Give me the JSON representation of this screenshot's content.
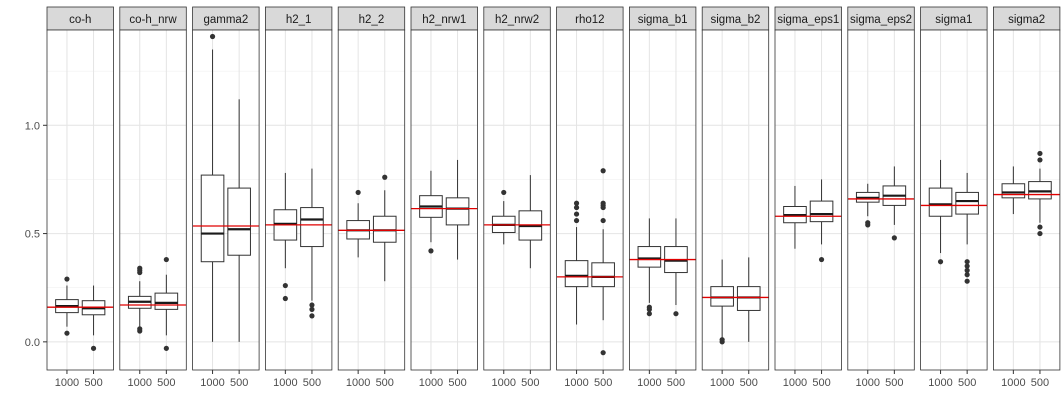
{
  "chart_data": {
    "type": "boxplot",
    "facet_by": "parameter",
    "x_categories": [
      "1000",
      "500"
    ],
    "yticks": [
      0.0,
      0.5,
      1.0
    ],
    "ytick_labels": [
      "0.0",
      "0.5",
      "1.0"
    ],
    "ylim": [
      -0.13,
      1.44
    ],
    "reference_line_color": "#e00000",
    "box_color": "#333333",
    "panels": [
      {
        "label": "co-h",
        "true_value": 0.16,
        "boxes": [
          {
            "x": "1000",
            "q1": 0.135,
            "median": 0.165,
            "q3": 0.195,
            "wlo": 0.07,
            "whi": 0.26,
            "outliers": [
              0.04,
              0.29
            ]
          },
          {
            "x": "500",
            "q1": 0.125,
            "median": 0.155,
            "q3": 0.19,
            "wlo": 0.03,
            "whi": 0.26,
            "outliers": [
              -0.03
            ]
          }
        ]
      },
      {
        "label": "co-h_nrw",
        "true_value": 0.17,
        "boxes": [
          {
            "x": "1000",
            "q1": 0.155,
            "median": 0.185,
            "q3": 0.21,
            "wlo": 0.07,
            "whi": 0.28,
            "outliers": [
              0.05,
              0.06,
              0.32,
              0.33,
              0.34
            ]
          },
          {
            "x": "500",
            "q1": 0.15,
            "median": 0.18,
            "q3": 0.225,
            "wlo": 0.03,
            "whi": 0.31,
            "outliers": [
              -0.03,
              0.38
            ]
          }
        ]
      },
      {
        "label": "gamma2",
        "true_value": 0.535,
        "boxes": [
          {
            "x": "1000",
            "q1": 0.37,
            "median": 0.5,
            "q3": 0.77,
            "wlo": 0.0,
            "whi": 1.35,
            "outliers": [
              1.41
            ]
          },
          {
            "x": "500",
            "q1": 0.4,
            "median": 0.52,
            "q3": 0.71,
            "wlo": 0.0,
            "whi": 1.12,
            "outliers": []
          }
        ]
      },
      {
        "label": "h2_1",
        "true_value": 0.54,
        "boxes": [
          {
            "x": "1000",
            "q1": 0.47,
            "median": 0.545,
            "q3": 0.61,
            "wlo": 0.34,
            "whi": 0.78,
            "outliers": [
              0.2,
              0.26
            ]
          },
          {
            "x": "500",
            "q1": 0.44,
            "median": 0.565,
            "q3": 0.62,
            "wlo": 0.19,
            "whi": 0.8,
            "outliers": [
              0.12,
              0.15,
              0.17
            ]
          }
        ]
      },
      {
        "label": "h2_2",
        "true_value": 0.515,
        "boxes": [
          {
            "x": "1000",
            "q1": 0.475,
            "median": 0.515,
            "q3": 0.56,
            "wlo": 0.39,
            "whi": 0.64,
            "outliers": [
              0.69
            ]
          },
          {
            "x": "500",
            "q1": 0.46,
            "median": 0.515,
            "q3": 0.58,
            "wlo": 0.28,
            "whi": 0.7,
            "outliers": [
              0.76
            ]
          }
        ]
      },
      {
        "label": "h2_nrw1",
        "true_value": 0.615,
        "boxes": [
          {
            "x": "1000",
            "q1": 0.575,
            "median": 0.625,
            "q3": 0.675,
            "wlo": 0.46,
            "whi": 0.79,
            "outliers": [
              0.42
            ]
          },
          {
            "x": "500",
            "q1": 0.54,
            "median": 0.615,
            "q3": 0.665,
            "wlo": 0.38,
            "whi": 0.84,
            "outliers": []
          }
        ]
      },
      {
        "label": "h2_nrw2",
        "true_value": 0.54,
        "boxes": [
          {
            "x": "1000",
            "q1": 0.505,
            "median": 0.54,
            "q3": 0.58,
            "wlo": 0.45,
            "whi": 0.65,
            "outliers": [
              0.69
            ]
          },
          {
            "x": "500",
            "q1": 0.47,
            "median": 0.535,
            "q3": 0.605,
            "wlo": 0.34,
            "whi": 0.77,
            "outliers": []
          }
        ]
      },
      {
        "label": "rho12",
        "true_value": 0.3,
        "boxes": [
          {
            "x": "1000",
            "q1": 0.255,
            "median": 0.305,
            "q3": 0.375,
            "wlo": 0.08,
            "whi": 0.53,
            "outliers": [
              0.56,
              0.59,
              0.62,
              0.64
            ]
          },
          {
            "x": "500",
            "q1": 0.255,
            "median": 0.3,
            "q3": 0.365,
            "wlo": 0.1,
            "whi": 0.52,
            "outliers": [
              -0.05,
              0.56,
              0.62,
              0.63,
              0.64,
              0.79
            ]
          }
        ]
      },
      {
        "label": "sigma_b1",
        "true_value": 0.38,
        "boxes": [
          {
            "x": "1000",
            "q1": 0.345,
            "median": 0.385,
            "q3": 0.44,
            "wlo": 0.18,
            "whi": 0.57,
            "outliers": [
              0.13,
              0.15,
              0.16
            ]
          },
          {
            "x": "500",
            "q1": 0.32,
            "median": 0.375,
            "q3": 0.44,
            "wlo": 0.17,
            "whi": 0.57,
            "outliers": [
              0.13
            ]
          }
        ]
      },
      {
        "label": "sigma_b2",
        "true_value": 0.205,
        "boxes": [
          {
            "x": "1000",
            "q1": 0.165,
            "median": 0.205,
            "q3": 0.255,
            "wlo": 0.02,
            "whi": 0.38,
            "outliers": [
              0.0,
              0.01
            ]
          },
          {
            "x": "500",
            "q1": 0.145,
            "median": 0.205,
            "q3": 0.255,
            "wlo": 0.0,
            "whi": 0.39,
            "outliers": []
          }
        ]
      },
      {
        "label": "sigma_eps1",
        "true_value": 0.58,
        "boxes": [
          {
            "x": "1000",
            "q1": 0.55,
            "median": 0.585,
            "q3": 0.625,
            "wlo": 0.43,
            "whi": 0.72,
            "outliers": []
          },
          {
            "x": "500",
            "q1": 0.555,
            "median": 0.59,
            "q3": 0.65,
            "wlo": 0.45,
            "whi": 0.75,
            "outliers": [
              0.38
            ]
          }
        ]
      },
      {
        "label": "sigma_eps2",
        "true_value": 0.66,
        "boxes": [
          {
            "x": "1000",
            "q1": 0.645,
            "median": 0.665,
            "q3": 0.69,
            "wlo": 0.58,
            "whi": 0.73,
            "outliers": [
              0.54,
              0.55
            ]
          },
          {
            "x": "500",
            "q1": 0.63,
            "median": 0.675,
            "q3": 0.72,
            "wlo": 0.54,
            "whi": 0.81,
            "outliers": [
              0.48
            ]
          }
        ]
      },
      {
        "label": "sigma1",
        "true_value": 0.63,
        "boxes": [
          {
            "x": "1000",
            "q1": 0.58,
            "median": 0.635,
            "q3": 0.71,
            "wlo": 0.41,
            "whi": 0.84,
            "outliers": [
              0.37
            ]
          },
          {
            "x": "500",
            "q1": 0.59,
            "median": 0.65,
            "q3": 0.69,
            "wlo": 0.45,
            "whi": 0.78,
            "outliers": [
              0.28,
              0.31,
              0.33,
              0.35,
              0.37
            ]
          }
        ]
      },
      {
        "label": "sigma2",
        "true_value": 0.68,
        "boxes": [
          {
            "x": "1000",
            "q1": 0.665,
            "median": 0.69,
            "q3": 0.73,
            "wlo": 0.59,
            "whi": 0.81,
            "outliers": []
          },
          {
            "x": "500",
            "q1": 0.66,
            "median": 0.695,
            "q3": 0.74,
            "wlo": 0.55,
            "whi": 0.8,
            "outliers": [
              0.5,
              0.53,
              0.84,
              0.87
            ]
          }
        ]
      }
    ]
  }
}
